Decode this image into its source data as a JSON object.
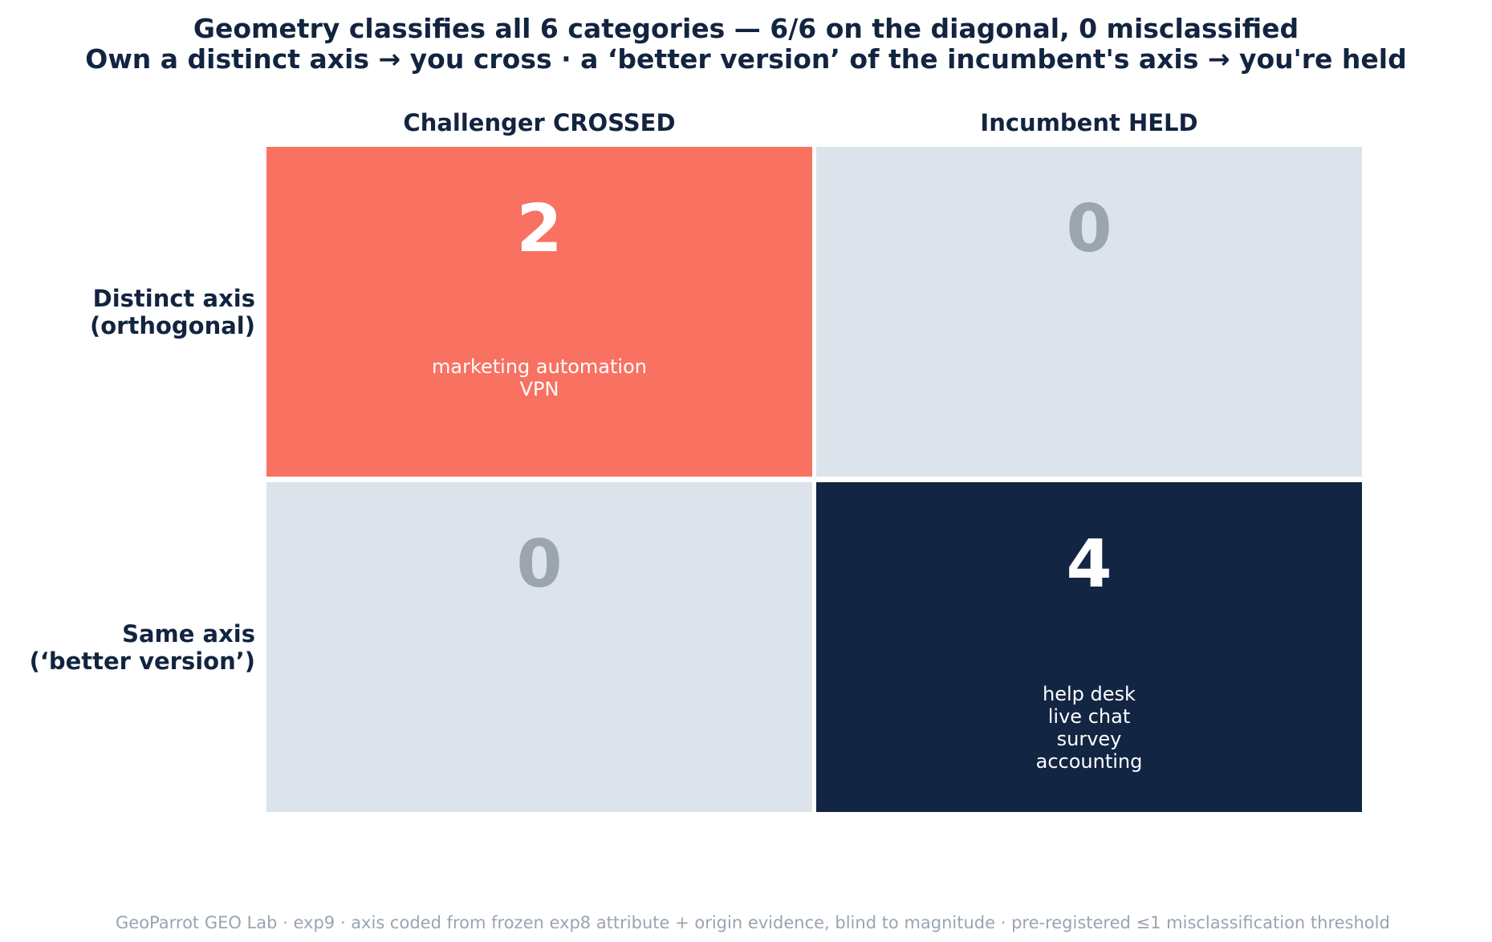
{
  "chart_data": {
    "type": "heatmap",
    "title": "Geometry classifies all 6 categories — 6/6 on the diagonal, 0 misclassified",
    "subtitle": "Own a distinct axis → you cross · a ‘better version’ of the incumbent's axis → you're held",
    "columns": [
      "Challenger CROSSED",
      "Incumbent HELD"
    ],
    "rows": [
      [
        "Distinct axis",
        "(orthogonal)"
      ],
      [
        "Same axis",
        "(‘better version’)"
      ]
    ],
    "cells": [
      [
        {
          "count": 2,
          "items": [
            "marketing automation",
            "VPN"
          ],
          "color": "#f87161",
          "count_color": "#ffffff"
        },
        {
          "count": 0,
          "items": [],
          "color": "#dce3ea",
          "count_color": "#9ba5b0"
        }
      ],
      [
        {
          "count": 0,
          "items": [],
          "color": "#dce3ea",
          "count_color": "#9ba5b0"
        },
        {
          "count": 4,
          "items": [
            "help desk",
            "live chat",
            "survey",
            "accounting"
          ],
          "color": "#122542",
          "count_color": "#ffffff"
        }
      ]
    ],
    "footer": "GeoParrot GEO Lab · exp9 · axis coded from frozen exp8 attribute + origin evidence, blind to magnitude · pre-registered ≤1 misclassification threshold"
  }
}
